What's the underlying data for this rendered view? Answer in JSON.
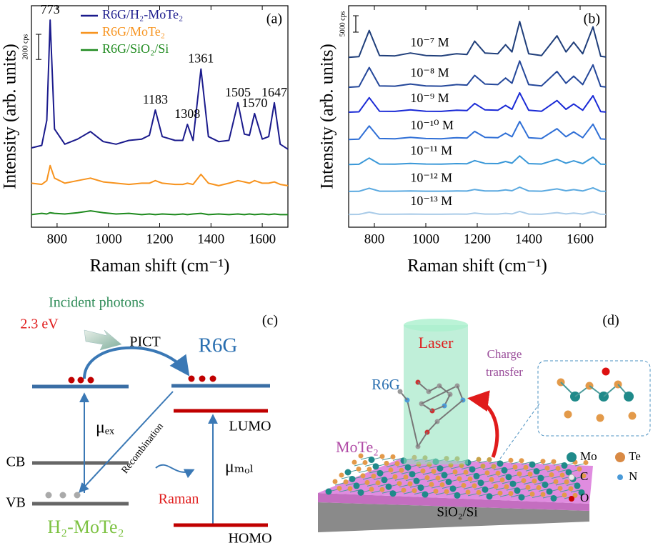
{
  "chart_data": [
    {
      "type": "line",
      "panel_label": "(a)",
      "x_label": "Raman shift (cm⁻¹)",
      "y_label": "Intensity (arb. units)",
      "x": [
        700,
        740,
        760,
        773,
        790,
        830,
        880,
        930,
        980,
        1030,
        1080,
        1130,
        1160,
        1183,
        1210,
        1260,
        1290,
        1308,
        1330,
        1361,
        1390,
        1430,
        1470,
        1505,
        1530,
        1550,
        1570,
        1600,
        1625,
        1647,
        1670,
        1700
      ],
      "series": [
        {
          "name": "R6G/H₂-MoTe₂",
          "color": "#1a1a8c",
          "values": [
            6300,
            6500,
            8500,
            16460,
            7800,
            6600,
            7000,
            7600,
            6800,
            6600,
            6900,
            7000,
            7300,
            9310,
            7200,
            6900,
            6900,
            8170,
            6900,
            12570,
            7200,
            6800,
            6900,
            9890,
            7400,
            7300,
            9030,
            7000,
            7200,
            9890,
            6600,
            6200
          ]
        },
        {
          "name": "R6G/MoTe₂",
          "color": "#f7931e",
          "values": [
            3500,
            3400,
            3700,
            4900,
            3900,
            3500,
            3700,
            3900,
            3600,
            3500,
            3400,
            3500,
            3500,
            3700,
            3500,
            3400,
            3400,
            3500,
            3400,
            4200,
            3500,
            3300,
            3500,
            3700,
            3600,
            3500,
            3700,
            3500,
            3500,
            3600,
            3400,
            3300
          ]
        },
        {
          "name": "R6G/SiO₂/Si",
          "color": "#1e8a1e",
          "values": [
            1000,
            1100,
            1050,
            1150,
            1100,
            1050,
            1150,
            1300,
            1150,
            1050,
            1100,
            1000,
            1050,
            1000,
            1050,
            1000,
            1050,
            1000,
            1050,
            1100,
            1000,
            1050,
            1000,
            1050,
            1000,
            1050,
            1000,
            1050,
            1000,
            1050,
            1000,
            1000
          ]
        }
      ],
      "peak_labels": [
        773,
        1183,
        1308,
        1361,
        1505,
        1570,
        1647
      ],
      "scale_bar": {
        "value": 2000,
        "label": "2000 cps"
      },
      "xlim": [
        700,
        1700
      ],
      "xticks": [
        800,
        1000,
        1200,
        1400,
        1600
      ],
      "ylim": [
        0,
        17600
      ],
      "legend": "upper right"
    },
    {
      "type": "line",
      "panel_label": "(b)",
      "x_label": "Raman shift (cm⁻¹)",
      "y_label": "Intensity (arb. units)",
      "x": [
        700,
        740,
        780,
        820,
        880,
        940,
        1000,
        1060,
        1120,
        1160,
        1190,
        1230,
        1280,
        1310,
        1335,
        1365,
        1400,
        1450,
        1510,
        1545,
        1575,
        1610,
        1650,
        1680,
        1700
      ],
      "series": [
        {
          "name": "10⁻⁷ M",
          "color": "#1f3e7a",
          "values": [
            51700,
            51920,
            59880,
            52250,
            52140,
            53010,
            52250,
            52140,
            52790,
            52570,
            56610,
            53010,
            52790,
            55520,
            53340,
            62600,
            52790,
            52250,
            58240,
            53340,
            56280,
            52790,
            60970,
            52030,
            51810
          ]
        },
        {
          "name": "10⁻⁸ M",
          "color": "#24479a",
          "values": [
            42600,
            42760,
            48600,
            43000,
            42920,
            43560,
            43000,
            42920,
            43400,
            43240,
            46200,
            43560,
            43400,
            45400,
            43800,
            50600,
            43400,
            43000,
            47400,
            43800,
            45960,
            43400,
            49400,
            42840,
            42680
          ]
        },
        {
          "name": "10⁻⁹ M",
          "color": "#1a2ad6",
          "values": [
            35000,
            35118,
            39425,
            35295,
            35236,
            35708,
            35295,
            35236,
            35590,
            35472,
            37655,
            35708,
            35590,
            37065,
            35885,
            40900,
            35590,
            35295,
            38540,
            35885,
            37478,
            35590,
            40015,
            35177,
            35059
          ]
        },
        {
          "name": "10⁻¹⁰ M",
          "color": "#2f6fd6",
          "values": [
            26700,
            26809,
            30803,
            26974,
            26919,
            27356,
            26974,
            26919,
            27247,
            27138,
            29162,
            27356,
            27247,
            28615,
            27521,
            32170,
            27247,
            26974,
            29982,
            27521,
            28997,
            27247,
            31350,
            26864,
            26755
          ]
        },
        {
          "name": "10⁻¹¹ M",
          "color": "#3a98d8",
          "values": [
            19100,
            19152,
            21050,
            19230,
            19204,
            19412,
            19230,
            19204,
            19360,
            19308,
            20270,
            19412,
            19360,
            20010,
            19490,
            21700,
            19360,
            19230,
            20660,
            19490,
            20192,
            19360,
            21310,
            19178,
            19126
          ]
        },
        {
          "name": "10⁻¹² M",
          "color": "#5aa9e0",
          "values": [
            10900,
            10925,
            11853,
            10964,
            10951,
            11052,
            10964,
            10951,
            11027,
            11002,
            11472,
            11052,
            11027,
            11345,
            11091,
            12170,
            11027,
            10964,
            11662,
            11091,
            11433,
            11027,
            11980,
            10938,
            10913
          ]
        },
        {
          "name": "10⁻¹³ M",
          "color": "#a9cbe8",
          "values": [
            3900,
            3918,
            4575,
            3945,
            3936,
            4008,
            3945,
            3936,
            3990,
            3972,
            4305,
            4008,
            3990,
            4215,
            4035,
            4800,
            3990,
            3945,
            4440,
            4035,
            4278,
            3990,
            4665,
            3927,
            3909
          ]
        }
      ],
      "scale_bar": {
        "value": 5000,
        "label": "5000 cps"
      },
      "xlim": [
        700,
        1700
      ],
      "xticks": [
        800,
        1000,
        1200,
        1400,
        1600
      ],
      "ylim": [
        0,
        67400
      ],
      "series_labels": "inline"
    }
  ],
  "panel_c": {
    "label": "(c)",
    "incident": "Incident photons",
    "energy": "2.3 eV",
    "pict": "PICT",
    "r6g": "R6G",
    "lumo": "LUMO",
    "homo": "HOMO",
    "cb": "CB",
    "vb": "VB",
    "mu_ex": "μₑₓ",
    "mu_mol": "μₘₒₗ",
    "recombination": "Recombination",
    "raman": "Raman",
    "material": "H₂-MoTe₂"
  },
  "panel_d": {
    "label": "(d)",
    "laser": "Laser",
    "charge": "Charge",
    "transfer": "transfer",
    "r6g": "R6G",
    "mote2": "MoTe₂",
    "substrate": "SiO₂/Si",
    "legend": [
      "Mo",
      "Te",
      "C",
      "N",
      "O"
    ]
  }
}
